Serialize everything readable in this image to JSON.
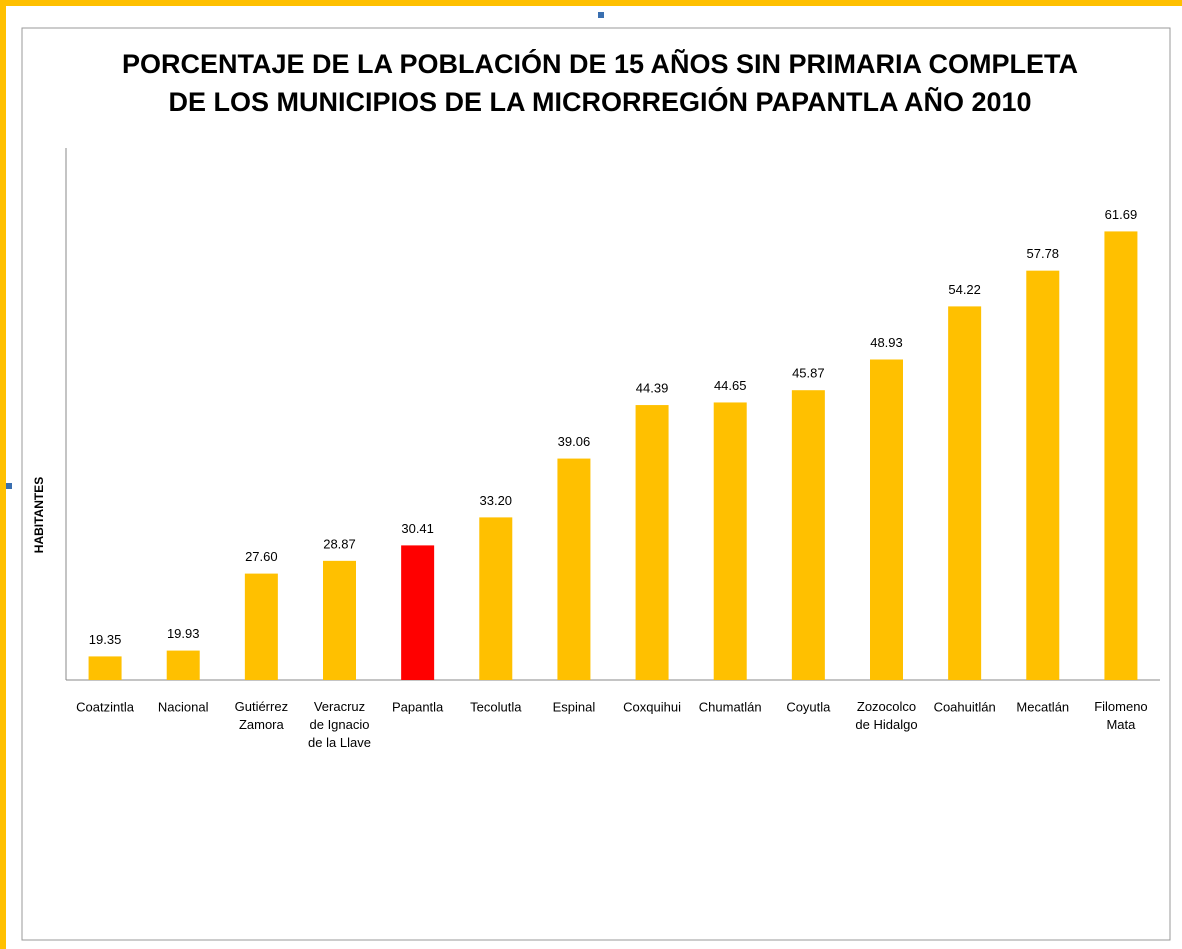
{
  "chart_data": {
    "type": "bar",
    "title": "PORCENTAJE DE LA POBLACIÓN DE 15 AÑOS SIN PRIMARIA COMPLETA\nDE LOS MUNICIPIOS DE LA MICRORREGIÓN PAPANTLA AÑO 2010",
    "y_label": "HABITANTES",
    "categories": [
      "Coatzintla",
      "Nacional",
      "Gutiérrez\nZamora",
      "Veracruz\nde Ignacio\nde la Llave",
      "Papantla",
      "Tecolutla",
      "Espinal",
      "Coxquihui",
      "Chumatlán",
      "Coyutla",
      "Zozocolco\nde Hidalgo",
      "Coahuitlán",
      "Mecatlán",
      "Filomeno\nMata"
    ],
    "values": [
      19.35,
      19.93,
      27.6,
      28.87,
      30.41,
      33.2,
      39.06,
      44.39,
      44.65,
      45.87,
      48.93,
      54.22,
      57.78,
      61.69
    ],
    "value_labels": [
      "19.35",
      "19.93",
      "27.60",
      "28.87",
      "30.41",
      "33.20",
      "39.06",
      "44.39",
      "44.65",
      "45.87",
      "48.93",
      "54.22",
      "57.78",
      "61.69"
    ],
    "colors": [
      "#ffc000",
      "#ffc000",
      "#ffc000",
      "#ffc000",
      "#ff0000",
      "#ffc000",
      "#ffc000",
      "#ffc000",
      "#ffc000",
      "#ffc000",
      "#ffc000",
      "#ffc000",
      "#ffc000",
      "#ffc000"
    ],
    "ylim": [
      17,
      70
    ]
  }
}
